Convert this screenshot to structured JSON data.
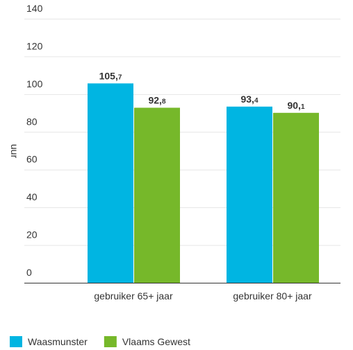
{
  "chart_data": {
    "type": "bar",
    "y_label": "uur",
    "categories": [
      "gebruiker 65+ jaar",
      "gebruiker 80+ jaar"
    ],
    "series": [
      {
        "name": "Waasmunster",
        "color": "#00b5e2",
        "values": [
          105.7,
          93.4
        ],
        "value_labels": [
          "105,7",
          "93,4"
        ]
      },
      {
        "name": "Vlaams Gewest",
        "color": "#76b82a",
        "values": [
          92.8,
          90.1
        ],
        "value_labels": [
          "92,8",
          "90,1"
        ]
      }
    ],
    "ylim": [
      0,
      140
    ],
    "yticks": [
      0,
      20,
      40,
      60,
      80,
      100,
      120,
      140
    ],
    "grid": true,
    "legend": "bottom"
  }
}
